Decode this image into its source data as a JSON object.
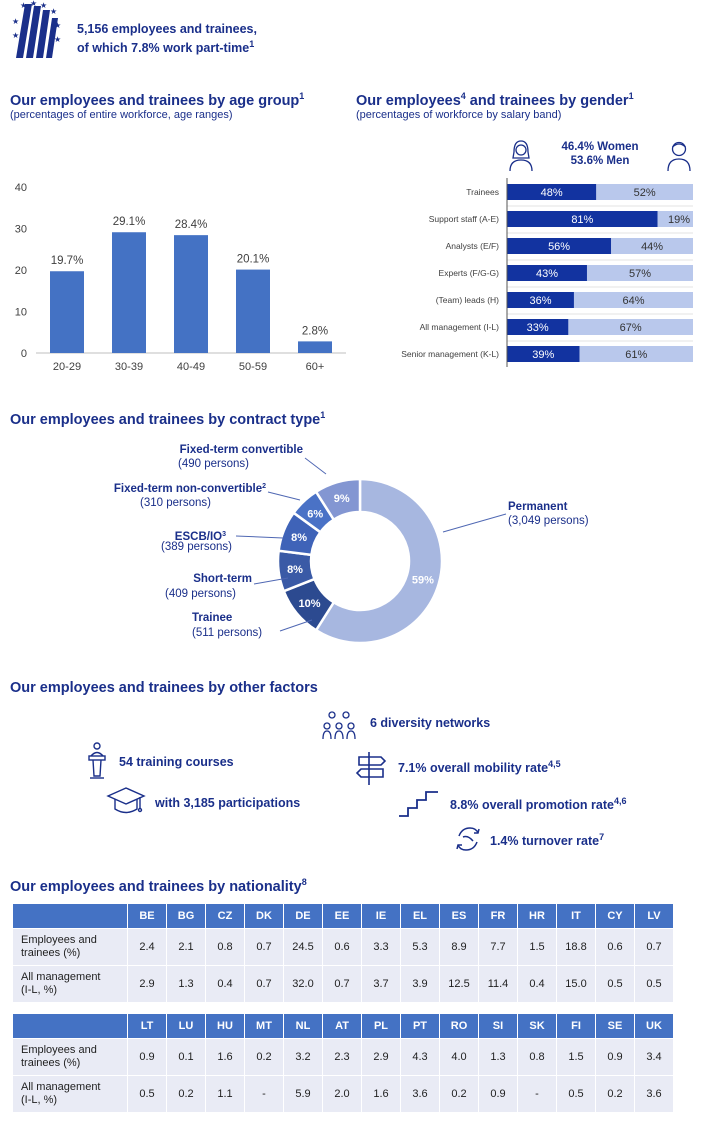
{
  "header": {
    "line1": "5,156 employees and trainees,",
    "line2": "of which 7.8% work part-time",
    "line2_sup": "1",
    "logo_icon": "ecb-logo-stars-icon"
  },
  "age_section": {
    "title": "Our employees  and trainees by age group",
    "title_sup": "1",
    "subtitle": "(percentages of entire workforce, age ranges)"
  },
  "gender_section": {
    "title": "Our employees",
    "title_sup": "4",
    "title_rest": " and trainees by gender",
    "title_sup2": "1",
    "subtitle": "(percentages of workforce by salary band)",
    "women_label": "46.4% Women",
    "men_label": "53.6% Men",
    "women_icon": "woman-icon",
    "men_icon": "man-icon"
  },
  "contract_section": {
    "title": "Our employees  and trainees by contract type",
    "title_sup": "1"
  },
  "other_section": {
    "title": "Our employees  and trainees by other factors",
    "items": {
      "diversity": {
        "icon": "people-network-icon",
        "text": "6 diversity networks"
      },
      "training": {
        "icon": "lectern-icon",
        "text": "54 training courses"
      },
      "participations": {
        "icon": "graduation-cap-icon",
        "text": "with 3,185 participations"
      },
      "mobility": {
        "icon": "signpost-icon",
        "text": "7.1% overall mobility rate",
        "sup": "4,5"
      },
      "promotion": {
        "icon": "stairs-icon",
        "text": "8.8% overall promotion rate",
        "sup": "4,6"
      },
      "turnover": {
        "icon": "turnover-arrows-icon",
        "text": "1.4% turnover rate",
        "sup": "7"
      }
    }
  },
  "nationality_section": {
    "title": "Our employees and trainees by nationality",
    "title_sup": "8",
    "row_labels": {
      "employees": [
        "Employees and",
        "trainees (%)"
      ],
      "management": [
        "All management",
        "(I-L, %)"
      ]
    }
  },
  "chart_data": [
    {
      "type": "bar",
      "categories": [
        "20-29",
        "30-39",
        "40-49",
        "50-59",
        "60+"
      ],
      "values": [
        19.7,
        29.1,
        28.4,
        20.1,
        2.8
      ],
      "data_labels": [
        "19.7%",
        "29.1%",
        "28.4%",
        "20.1%",
        "2.8%"
      ],
      "yticks": [
        0,
        10,
        20,
        30,
        40
      ],
      "ylim": [
        0,
        40
      ],
      "grid": false,
      "color": "#4472c4"
    },
    {
      "type": "bar",
      "stacked": true,
      "orientation": "horizontal",
      "categories": [
        "Trainees",
        "Support staff (A-E)",
        "Analysts (E/F)",
        "Experts (F/G-G)",
        "(Team) leads (H)",
        "All management (I-L)",
        "Senior management (K-L)"
      ],
      "series": [
        {
          "values": [
            48,
            81,
            56,
            43,
            36,
            33,
            39
          ],
          "labels": [
            "48%",
            "81%",
            "56%",
            "43%",
            "36%",
            "33%",
            "39%"
          ],
          "color": "#1233a0"
        },
        {
          "values": [
            52,
            19,
            44,
            57,
            64,
            67,
            61
          ],
          "labels": [
            "52%",
            "19%",
            "44%",
            "57%",
            "64%",
            "67%",
            "61%"
          ],
          "color": "#b9c8ec"
        }
      ],
      "xlim": [
        0,
        100
      ]
    },
    {
      "type": "pie",
      "donut": true,
      "slices": [
        {
          "name": "Permanent",
          "persons": "(3,049 persons)",
          "value": 59,
          "label": "59%",
          "color": "#a7b7e0"
        },
        {
          "name": "Trainee",
          "persons": "(511 persons)",
          "value": 10,
          "label": "10%",
          "color": "#2c4a90"
        },
        {
          "name": "Short-term",
          "persons": "(409 persons)",
          "value": 8,
          "label": "8%",
          "color": "#3a5aa6"
        },
        {
          "name": "ESCB/IO",
          "name_sup": "3",
          "persons": "(389 persons)",
          "value": 8,
          "label": "8%",
          "color": "#3f63b8"
        },
        {
          "name": "Fixed-term non-convertible",
          "name_sup": "2",
          "persons": "(310 persons)",
          "value": 6,
          "label": "6%",
          "color": "#4a72c6"
        },
        {
          "name": "Fixed-term convertible",
          "persons": "(490 persons)",
          "value": 9,
          "label": "9%",
          "color": "#8396d2"
        }
      ]
    },
    {
      "type": "table",
      "blocks": [
        {
          "countries": [
            "BE",
            "BG",
            "CZ",
            "DK",
            "DE",
            "EE",
            "IE",
            "EL",
            "ES",
            "FR",
            "HR",
            "IT",
            "CY",
            "LV"
          ],
          "employees": [
            "2.4",
            "2.1",
            "0.8",
            "0.7",
            "24.5",
            "0.6",
            "3.3",
            "5.3",
            "8.9",
            "7.7",
            "1.5",
            "18.8",
            "0.6",
            "0.7"
          ],
          "management": [
            "2.9",
            "1.3",
            "0.4",
            "0.7",
            "32.0",
            "0.7",
            "3.7",
            "3.9",
            "12.5",
            "11.4",
            "0.4",
            "15.0",
            "0.5",
            "0.5"
          ]
        },
        {
          "countries": [
            "LT",
            "LU",
            "HU",
            "MT",
            "NL",
            "AT",
            "PL",
            "PT",
            "RO",
            "SI",
            "SK",
            "FI",
            "SE",
            "UK"
          ],
          "employees": [
            "0.9",
            "0.1",
            "1.6",
            "0.2",
            "3.2",
            "2.3",
            "2.9",
            "4.3",
            "4.0",
            "1.3",
            "0.8",
            "1.5",
            "0.9",
            "3.4"
          ],
          "management": [
            "0.5",
            "0.2",
            "1.1",
            "-",
            "5.9",
            "2.0",
            "1.6",
            "3.6",
            "0.2",
            "0.9",
            "-",
            "0.5",
            "0.2",
            "3.6"
          ]
        }
      ]
    }
  ]
}
